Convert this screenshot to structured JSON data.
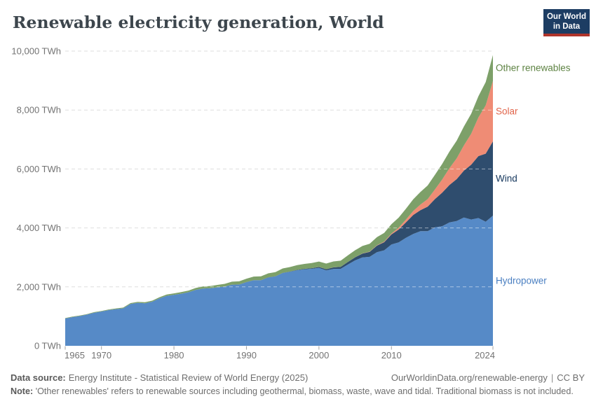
{
  "header": {
    "title": "Renewable electricity generation, World",
    "logo": {
      "line1": "Our World",
      "line2": "in Data",
      "bg_color": "#1d3d63",
      "accent_color": "#b0342b"
    }
  },
  "footer": {
    "source_label": "Data source:",
    "source_text": "Energy Institute - Statistical Review of World Energy (2025)",
    "link": "OurWorldinData.org/renewable-energy",
    "separator": "|",
    "license": "CC BY",
    "note_label": "Note:",
    "note_text": "'Other renewables' refers to renewable sources including geothermal, biomass, waste, wave and tidal. Traditional biomass is not included."
  },
  "chart_data": {
    "type": "area",
    "stacked": true,
    "title": "Renewable electricity generation, World",
    "xlabel": "",
    "ylabel": "",
    "unit": "TWh",
    "xlim": [
      1965,
      2024
    ],
    "ylim": [
      0,
      10000
    ],
    "grid": "dashed horizontal",
    "legend_position": "right-inline",
    "x": [
      1965,
      1966,
      1967,
      1968,
      1969,
      1970,
      1971,
      1972,
      1973,
      1974,
      1975,
      1976,
      1977,
      1978,
      1979,
      1980,
      1981,
      1982,
      1983,
      1984,
      1985,
      1986,
      1987,
      1988,
      1989,
      1990,
      1991,
      1992,
      1993,
      1994,
      1995,
      1996,
      1997,
      1998,
      1999,
      2000,
      2001,
      2002,
      2003,
      2004,
      2005,
      2006,
      2007,
      2008,
      2009,
      2010,
      2011,
      2012,
      2013,
      2014,
      2015,
      2016,
      2017,
      2018,
      2019,
      2020,
      2021,
      2022,
      2023,
      2024
    ],
    "series": [
      {
        "name": "Hydropower",
        "color": "#568ac7",
        "label_color": "#4a7fc1",
        "values": [
          926,
          975,
          1009,
          1059,
          1124,
          1164,
          1211,
          1244,
          1271,
          1420,
          1459,
          1443,
          1496,
          1609,
          1695,
          1732,
          1768,
          1816,
          1897,
          1944,
          1952,
          1983,
          2011,
          2074,
          2078,
          2159,
          2223,
          2223,
          2319,
          2353,
          2470,
          2512,
          2566,
          2597,
          2614,
          2644,
          2560,
          2608,
          2614,
          2758,
          2900,
          2998,
          3020,
          3177,
          3240,
          3437,
          3509,
          3663,
          3794,
          3890,
          3890,
          4021,
          4060,
          4186,
          4235,
          4355,
          4286,
          4334,
          4210,
          4418
        ]
      },
      {
        "name": "Wind",
        "color": "#2f4d6e",
        "label_color": "#14365c",
        "values": [
          0,
          0,
          0,
          0,
          0,
          0,
          0,
          0,
          0,
          0,
          0,
          0,
          0,
          0,
          0,
          0,
          0,
          0,
          0,
          0,
          0,
          0,
          0,
          1,
          2,
          4,
          4,
          5,
          6,
          7,
          8,
          9,
          12,
          16,
          21,
          31,
          38,
          52,
          63,
          85,
          104,
          133,
          171,
          221,
          276,
          342,
          437,
          523,
          646,
          712,
          831,
          958,
          1136,
          1269,
          1420,
          1591,
          1861,
          2104,
          2310,
          2520
        ]
      },
      {
        "name": "Solar",
        "color": "#ef8c75",
        "label_color": "#e1654b",
        "values": [
          0,
          0,
          0,
          0,
          0,
          0,
          0,
          0,
          0,
          0,
          0,
          0,
          0,
          0,
          0,
          0,
          0,
          0,
          0,
          0,
          0,
          0,
          0,
          0,
          0,
          0,
          0,
          0,
          0,
          0,
          0,
          0,
          0,
          0,
          0,
          1,
          1,
          2,
          2,
          3,
          4,
          5,
          7,
          12,
          20,
          32,
          63,
          97,
          132,
          190,
          256,
          328,
          445,
          574,
          704,
          853,
          1048,
          1310,
          1640,
          2050
        ]
      },
      {
        "name": "Other renewables",
        "color": "#7da069",
        "label_color": "#5d8242",
        "values": [
          14,
          15,
          16,
          17,
          18,
          20,
          22,
          24,
          26,
          28,
          31,
          34,
          37,
          40,
          44,
          48,
          53,
          58,
          64,
          70,
          77,
          84,
          92,
          100,
          108,
          116,
          122,
          128,
          134,
          140,
          146,
          152,
          158,
          166,
          174,
          184,
          192,
          200,
          210,
          222,
          236,
          250,
          264,
          278,
          294,
          316,
          340,
          366,
          396,
          428,
          462,
          496,
          530,
          562,
          600,
          640,
          680,
          720,
          790,
          880
        ]
      }
    ],
    "y_ticks": [
      {
        "value": 0,
        "label": "0 TWh"
      },
      {
        "value": 2000,
        "label": "2,000 TWh"
      },
      {
        "value": 4000,
        "label": "4,000 TWh"
      },
      {
        "value": 6000,
        "label": "6,000 TWh"
      },
      {
        "value": 8000,
        "label": "8,000 TWh"
      },
      {
        "value": 10000,
        "label": "10,000 TWh"
      }
    ],
    "x_ticks": [
      {
        "value": 1965,
        "label": "1965"
      },
      {
        "value": 1970,
        "label": "1970"
      },
      {
        "value": 1980,
        "label": "1980"
      },
      {
        "value": 1990,
        "label": "1990"
      },
      {
        "value": 2000,
        "label": "2000"
      },
      {
        "value": 2010,
        "label": "2010"
      },
      {
        "value": 2024,
        "label": "2024"
      }
    ]
  }
}
